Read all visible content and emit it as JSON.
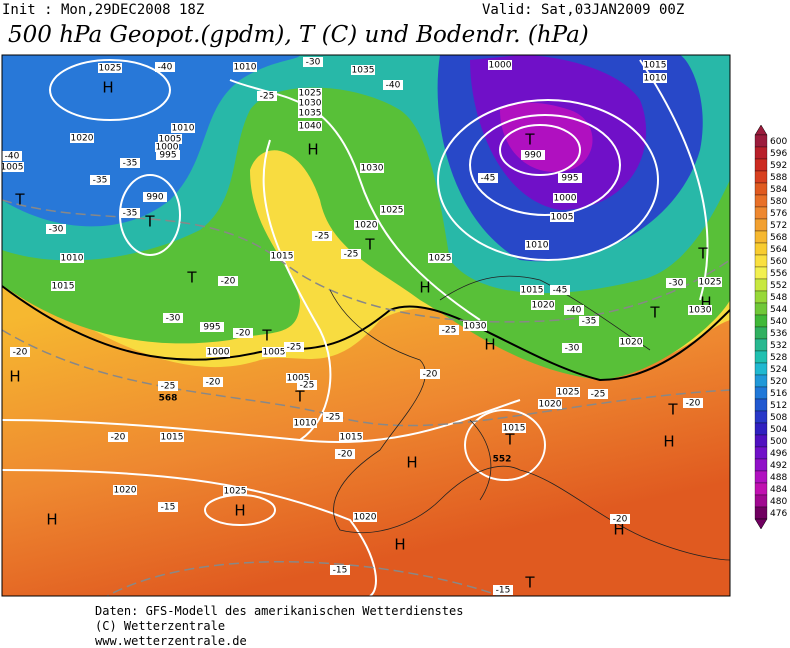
{
  "header": {
    "init": "Init : Mon,29DEC2008 18Z",
    "valid": "Valid: Sat,03JAN2009 00Z",
    "title": "500 hPa Geopot.(gpdm), T (C) und Bodendr. (hPa)"
  },
  "colorbar": {
    "levels": [
      600,
      596,
      592,
      588,
      584,
      580,
      576,
      572,
      568,
      564,
      560,
      556,
      552,
      548,
      544,
      540,
      536,
      532,
      528,
      524,
      520,
      516,
      512,
      508,
      504,
      500,
      496,
      492,
      488,
      484,
      480,
      476
    ],
    "colors": [
      "#9b1c3c",
      "#b8202a",
      "#cc2a20",
      "#d84020",
      "#e05a20",
      "#e87028",
      "#ee8830",
      "#f2a030",
      "#f6b830",
      "#f8cc30",
      "#fae040",
      "#f2f050",
      "#c8e840",
      "#98d838",
      "#70c838",
      "#40b838",
      "#30b060",
      "#28b890",
      "#20c0b0",
      "#20b8d0",
      "#2098d8",
      "#2078d8",
      "#2058d0",
      "#2838c8",
      "#3020c0",
      "#5010c0",
      "#7010c8",
      "#9010c8",
      "#b010c0",
      "#c010b0",
      "#a00890",
      "#700060"
    ]
  },
  "map": {
    "centers": [
      "H",
      "T",
      "H",
      "T",
      "T",
      "T",
      "T",
      "T",
      "T",
      "H",
      "H",
      "T",
      "H",
      "T",
      "H",
      "H",
      "H",
      "H",
      "H",
      "H",
      "H",
      "T",
      "T",
      "T"
    ],
    "isobars": [
      "1025",
      "1010",
      "1035",
      "1000",
      "1015",
      "1010",
      "1020",
      "1010",
      "1005",
      "1000",
      "995",
      "990",
      "1005",
      "1010",
      "1015",
      "1025",
      "1030",
      "1035",
      "1040",
      "1030",
      "1025",
      "1020",
      "1015",
      "990",
      "995",
      "1000",
      "1005",
      "1010",
      "1015",
      "1020",
      "1025",
      "1030",
      "1025",
      "1030",
      "1020",
      "995",
      "1000",
      "1005",
      "1005",
      "1010",
      "1015",
      "1015",
      "1020",
      "1025",
      "1020",
      "1015",
      "1020",
      "1025"
    ],
    "temps": [
      "-40",
      "-30",
      "-40",
      "-25",
      "-35",
      "-40",
      "-35",
      "-35",
      "-30",
      "-25",
      "-25",
      "-20",
      "-30",
      "-20",
      "-25",
      "-25",
      "-20",
      "-25",
      "-25",
      "-20",
      "-20",
      "-20",
      "-20",
      "-25",
      "-45",
      "-45",
      "-40",
      "-35",
      "-30",
      "-30",
      "-25",
      "-20",
      "-20",
      "-15",
      "-15",
      "-15"
    ],
    "heights": [
      "568",
      "552"
    ]
  },
  "footer": [
    "Daten: GFS-Modell des amerikanischen Wetterdienstes",
    "(C) Wetterzentrale",
    "www.wetterzentrale.de"
  ]
}
